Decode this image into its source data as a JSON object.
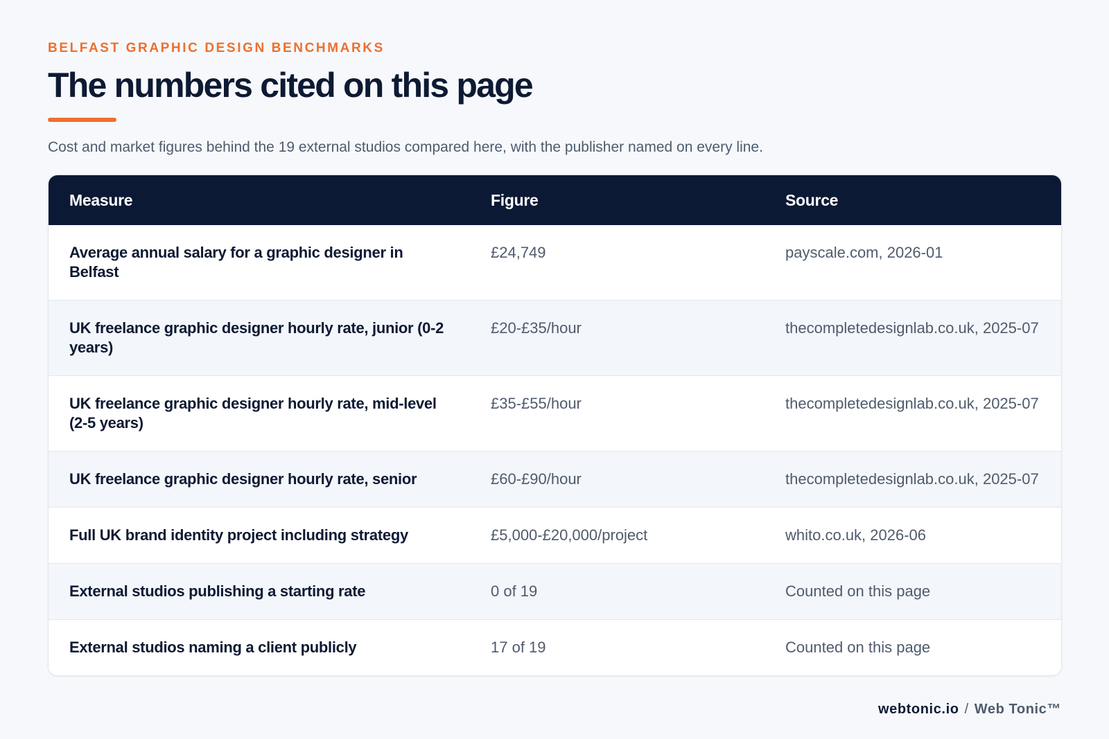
{
  "header": {
    "eyebrow": "BELFAST GRAPHIC DESIGN BENCHMARKS",
    "title": "The numbers cited on this page",
    "subtitle": "Cost and market figures behind the 19 external studios compared here, with the publisher named on every line."
  },
  "table": {
    "columns": [
      "Measure",
      "Figure",
      "Source"
    ],
    "rows": [
      {
        "measure": "Average annual salary for a graphic designer in Belfast",
        "figure": "£24,749",
        "source": "payscale.com, 2026-01"
      },
      {
        "measure": "UK freelance graphic designer hourly rate, junior (0-2 years)",
        "figure": "£20-£35/hour",
        "source": "thecompletedesignlab.co.uk, 2025-07"
      },
      {
        "measure": "UK freelance graphic designer hourly rate, mid-level (2-5 years)",
        "figure": "£35-£55/hour",
        "source": "thecompletedesignlab.co.uk, 2025-07"
      },
      {
        "measure": "UK freelance graphic designer hourly rate, senior",
        "figure": "£60-£90/hour",
        "source": "thecompletedesignlab.co.uk, 2025-07"
      },
      {
        "measure": "Full UK brand identity project including strategy",
        "figure": "£5,000-£20,000/project",
        "source": "whito.co.uk, 2026-06"
      },
      {
        "measure": "External studios publishing a starting rate",
        "figure": "0 of 19",
        "source": "Counted on this page"
      },
      {
        "measure": "External studios naming a client publicly",
        "figure": "17 of 19",
        "source": "Counted on this page"
      }
    ]
  },
  "footer": {
    "domain": "webtonic.io",
    "separator": "/",
    "brand": "Web Tonic™"
  },
  "colors": {
    "accent": "#ee6f2d",
    "header_bg": "#0c1934",
    "text_dark": "#0e1a33",
    "text_muted": "#4f5b6d",
    "page_bg": "#f6f8fb"
  }
}
